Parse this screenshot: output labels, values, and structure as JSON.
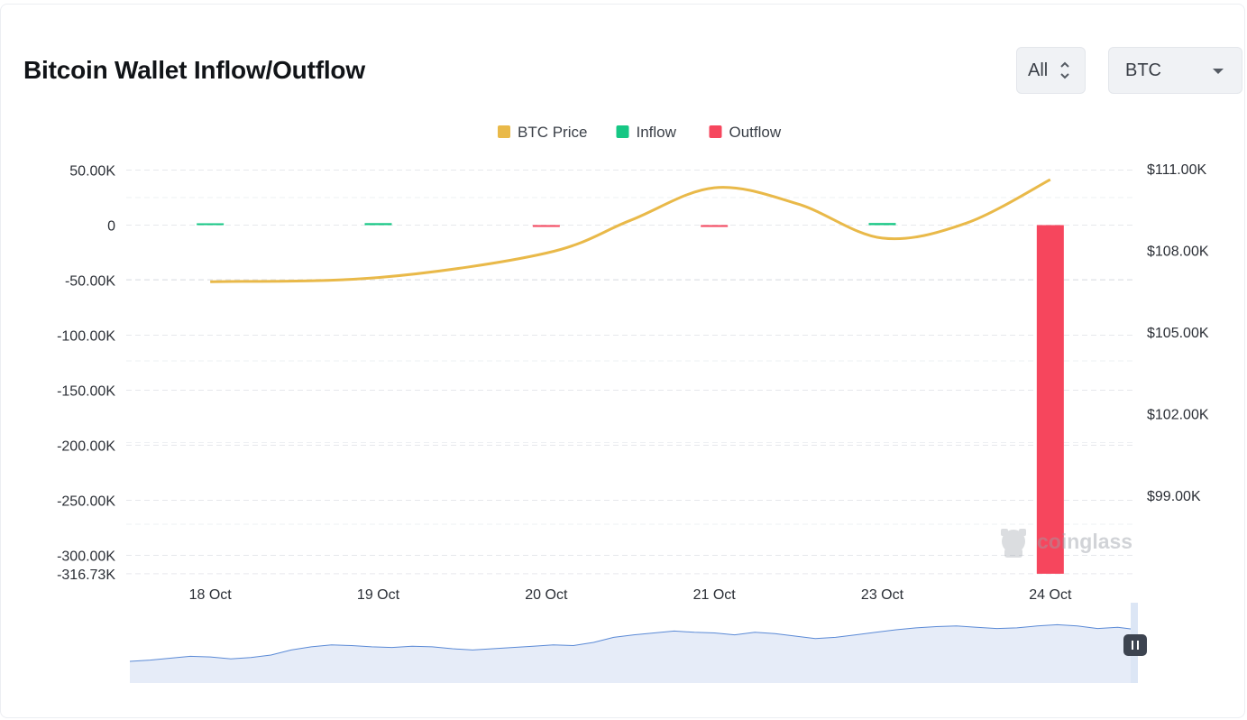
{
  "title": "Bitcoin Wallet Inflow/Outflow",
  "controls": {
    "range_value": "All",
    "coin_value": "BTC"
  },
  "legend": [
    {
      "label": "BTC Price",
      "color": "#e9b949"
    },
    {
      "label": "Inflow",
      "color": "#16c784"
    },
    {
      "label": "Outflow",
      "color": "#f6465d"
    }
  ],
  "watermark": "coinglass",
  "chart_data": {
    "type": "bar",
    "categories": [
      "18 Oct",
      "19 Oct",
      "20 Oct",
      "21 Oct",
      "23 Oct",
      "24 Oct"
    ],
    "series": [
      {
        "name": "Inflow",
        "type": "bar",
        "values": [
          700,
          1800,
          0,
          0,
          1900,
          0
        ]
      },
      {
        "name": "Outflow",
        "type": "bar",
        "values": [
          0,
          0,
          -700,
          -1200,
          0,
          -316730
        ]
      },
      {
        "name": "BTC Price",
        "type": "line",
        "axis": "right",
        "x": [
          0,
          1,
          2,
          2.5,
          3,
          3.5,
          4,
          4.5,
          5
        ],
        "values": [
          106850,
          107000,
          107900,
          109100,
          110300,
          109700,
          108450,
          109000,
          110600
        ]
      }
    ],
    "y_left": {
      "min": -316730,
      "max": 50000,
      "ticks": [
        50000,
        0,
        -50000,
        -100000,
        -150000,
        -200000,
        -250000,
        -300000,
        -316730
      ],
      "tick_labels": [
        "50.00K",
        "0",
        "-50.00K",
        "-100.00K",
        "-150.00K",
        "-200.00K",
        "-250.00K",
        "-300.00K",
        "-316.73K"
      ]
    },
    "y_right": {
      "ticks": [
        111000,
        108000,
        105000,
        102000,
        99000
      ],
      "tick_labels": [
        "$111.00K",
        "$108.00K",
        "$105.00K",
        "$102.00K",
        "$99.00K"
      ]
    },
    "grid": true,
    "legend_position": "top-center"
  },
  "navigator": {
    "values": [
      0.1,
      0.12,
      0.15,
      0.18,
      0.17,
      0.14,
      0.16,
      0.2,
      0.28,
      0.33,
      0.36,
      0.35,
      0.33,
      0.32,
      0.34,
      0.33,
      0.3,
      0.28,
      0.3,
      0.32,
      0.34,
      0.36,
      0.35,
      0.4,
      0.48,
      0.52,
      0.55,
      0.58,
      0.56,
      0.55,
      0.52,
      0.56,
      0.54,
      0.5,
      0.46,
      0.48,
      0.52,
      0.56,
      0.6,
      0.63,
      0.65,
      0.66,
      0.64,
      0.62,
      0.63,
      0.66,
      0.68,
      0.66,
      0.62,
      0.64,
      0.6
    ]
  }
}
